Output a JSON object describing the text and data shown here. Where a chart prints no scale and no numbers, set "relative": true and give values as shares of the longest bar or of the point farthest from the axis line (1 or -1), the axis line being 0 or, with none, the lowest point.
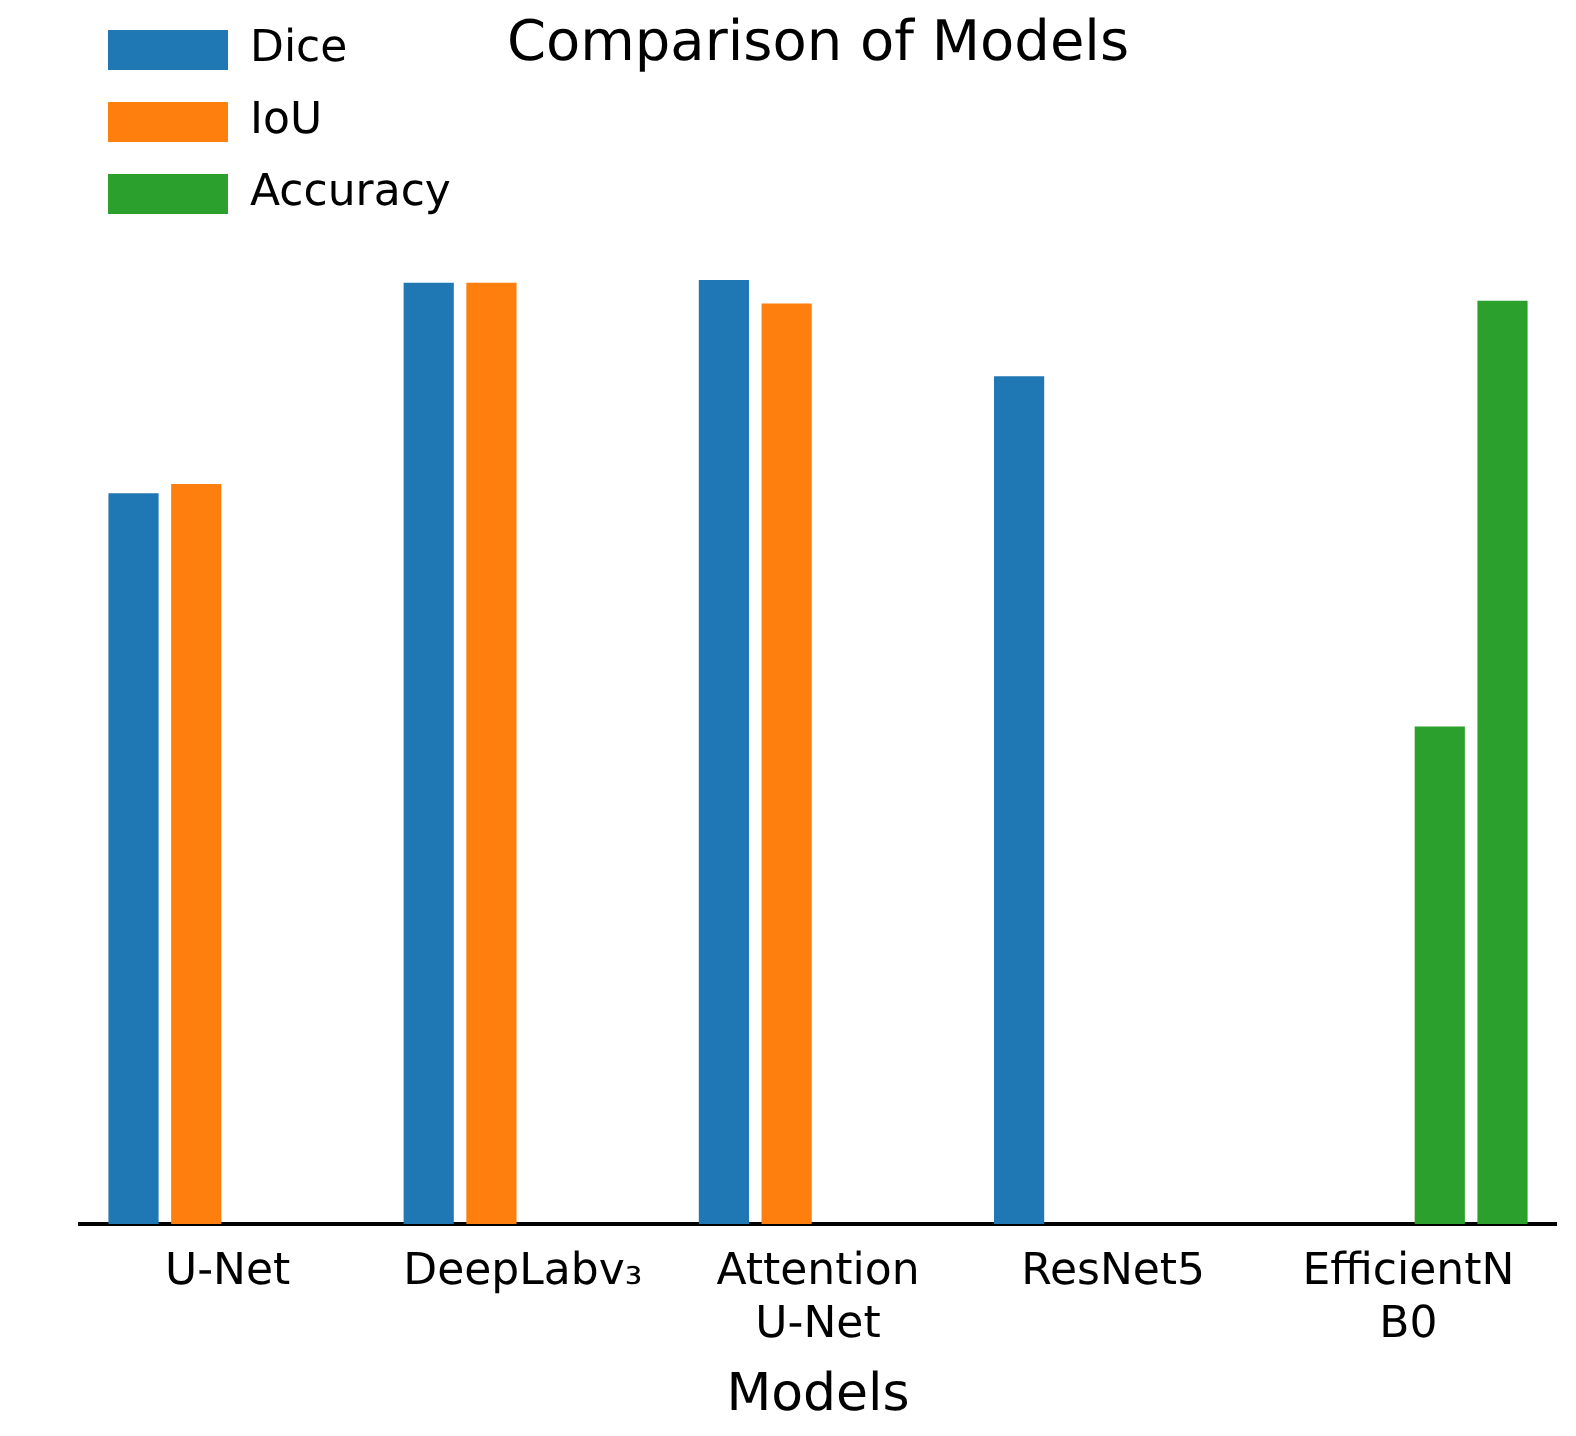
{
  "chart_data": {
    "type": "bar",
    "title": "Comparison of Models",
    "xlabel": "Models",
    "relative": true,
    "legend": "top left",
    "grid": false,
    "categories": [
      "U-Net",
      "DeepLabv₃",
      "Attention\nU-Net",
      "ResNet5",
      "EfficientN\nB0"
    ],
    "series": [
      {
        "name": "Dice",
        "color": "#1f77b4",
        "values": [
          0.774,
          0.997,
          1,
          0.898,
          null
        ]
      },
      {
        "name": "IoU",
        "color": "#ff7f0e",
        "values": [
          0.784,
          0.997,
          0.975,
          null,
          null
        ]
      },
      {
        "name": "Accuracy",
        "color": "#2ca02c",
        "values": [
          null,
          null,
          null,
          null,
          0.527
        ]
      },
      {
        "color": "#2ca02c",
        "values": [
          null,
          null,
          null,
          null,
          0.978
        ]
      }
    ]
  }
}
